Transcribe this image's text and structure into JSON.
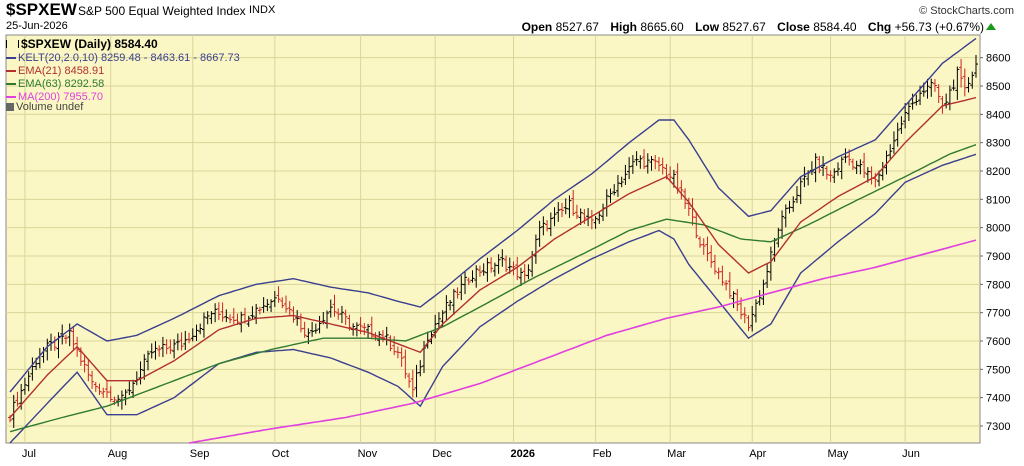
{
  "header": {
    "symbol": "$SPXEW",
    "name": "S&P 500 Equal Weighted Index",
    "exchange": "INDX",
    "brand": "© StockCharts.com",
    "date": "25-Jun-2026",
    "open_label": "Open",
    "open": "8527.67",
    "high_label": "High",
    "high": "8665.60",
    "low_label": "Low",
    "low": "8527.67",
    "close_label": "Close",
    "close": "8584.40",
    "chg_label": "Chg",
    "chg": "+56.73 (+0.67%)"
  },
  "legend": {
    "title": "$SPXEW (Daily) 8584.40",
    "kelt": "KELT(20,2.0,10) 8259.48 - 8463.61 - 8667.73",
    "ema21": "EMA(21) 8458.91",
    "ema63": "EMA(63) 8292.58",
    "ma200": "MA(200) 7955.70",
    "volume": "Volume undef"
  },
  "colors": {
    "background": "#fbf7c4",
    "grid": "#d9d59a",
    "price": "#000000",
    "price_down": "#cc2222",
    "kelt": "#3a3f8f",
    "ema21": "#b23030",
    "ema63": "#2f7a2f",
    "ma200": "#e040e0",
    "up": "#1a9a1a"
  },
  "chart_data": {
    "type": "line",
    "title": "$SPXEW (Daily) 8584.40",
    "ylim": [
      7240,
      8680
    ],
    "yticks": [
      7300,
      7400,
      7500,
      7600,
      7700,
      7800,
      7900,
      8000,
      8100,
      8200,
      8300,
      8400,
      8500,
      8600
    ],
    "x_month_labels": [
      {
        "label": "Jul",
        "i": 4
      },
      {
        "label": "Aug",
        "i": 27
      },
      {
        "label": "Sep",
        "i": 49
      },
      {
        "label": "Oct",
        "i": 71
      },
      {
        "label": "Nov",
        "i": 94
      },
      {
        "label": "Dec",
        "i": 114
      },
      {
        "label": "2026",
        "i": 135,
        "bold": true
      },
      {
        "label": "Feb",
        "i": 157
      },
      {
        "label": "Mar",
        "i": 177
      },
      {
        "label": "Apr",
        "i": 199
      },
      {
        "label": "May",
        "i": 220
      },
      {
        "label": "Jun",
        "i": 240
      }
    ],
    "n_bars": 260,
    "close_keys": [
      [
        0,
        7340
      ],
      [
        8,
        7560
      ],
      [
        16,
        7620
      ],
      [
        22,
        7450
      ],
      [
        30,
        7390
      ],
      [
        38,
        7560
      ],
      [
        46,
        7590
      ],
      [
        54,
        7700
      ],
      [
        62,
        7680
      ],
      [
        72,
        7760
      ],
      [
        80,
        7620
      ],
      [
        86,
        7720
      ],
      [
        92,
        7650
      ],
      [
        100,
        7620
      ],
      [
        104,
        7560
      ],
      [
        108,
        7420
      ],
      [
        112,
        7620
      ],
      [
        118,
        7740
      ],
      [
        124,
        7840
      ],
      [
        132,
        7880
      ],
      [
        138,
        7820
      ],
      [
        142,
        7990
      ],
      [
        150,
        8080
      ],
      [
        156,
        8010
      ],
      [
        162,
        8140
      ],
      [
        168,
        8240
      ],
      [
        174,
        8220
      ],
      [
        178,
        8170
      ],
      [
        182,
        8060
      ],
      [
        186,
        7920
      ],
      [
        192,
        7800
      ],
      [
        196,
        7700
      ],
      [
        198,
        7660
      ],
      [
        202,
        7800
      ],
      [
        206,
        8000
      ],
      [
        212,
        8150
      ],
      [
        216,
        8230
      ],
      [
        220,
        8180
      ],
      [
        224,
        8250
      ],
      [
        228,
        8210
      ],
      [
        232,
        8160
      ],
      [
        236,
        8280
      ],
      [
        240,
        8400
      ],
      [
        244,
        8480
      ],
      [
        248,
        8500
      ],
      [
        250,
        8420
      ],
      [
        254,
        8540
      ],
      [
        256,
        8480
      ],
      [
        259,
        8584
      ]
    ],
    "ema21_keys": [
      [
        0,
        7330
      ],
      [
        10,
        7480
      ],
      [
        18,
        7580
      ],
      [
        26,
        7460
      ],
      [
        34,
        7460
      ],
      [
        44,
        7530
      ],
      [
        56,
        7640
      ],
      [
        66,
        7680
      ],
      [
        76,
        7690
      ],
      [
        86,
        7660
      ],
      [
        96,
        7630
      ],
      [
        104,
        7590
      ],
      [
        110,
        7560
      ],
      [
        116,
        7660
      ],
      [
        126,
        7780
      ],
      [
        136,
        7860
      ],
      [
        146,
        7960
      ],
      [
        156,
        8040
      ],
      [
        166,
        8120
      ],
      [
        176,
        8180
      ],
      [
        182,
        8090
      ],
      [
        190,
        7940
      ],
      [
        198,
        7840
      ],
      [
        204,
        7880
      ],
      [
        212,
        8020
      ],
      [
        222,
        8110
      ],
      [
        232,
        8180
      ],
      [
        240,
        8300
      ],
      [
        250,
        8430
      ],
      [
        259,
        8459
      ]
    ],
    "ema63_keys": [
      [
        0,
        7280
      ],
      [
        14,
        7330
      ],
      [
        26,
        7370
      ],
      [
        40,
        7440
      ],
      [
        56,
        7520
      ],
      [
        70,
        7570
      ],
      [
        84,
        7610
      ],
      [
        96,
        7610
      ],
      [
        106,
        7600
      ],
      [
        116,
        7650
      ],
      [
        126,
        7720
      ],
      [
        140,
        7820
      ],
      [
        154,
        7910
      ],
      [
        166,
        7990
      ],
      [
        176,
        8030
      ],
      [
        186,
        8010
      ],
      [
        196,
        7960
      ],
      [
        204,
        7950
      ],
      [
        214,
        8010
      ],
      [
        226,
        8090
      ],
      [
        240,
        8180
      ],
      [
        252,
        8260
      ],
      [
        259,
        8293
      ]
    ],
    "ma200_keys": [
      [
        48,
        7240
      ],
      [
        70,
        7290
      ],
      [
        90,
        7330
      ],
      [
        108,
        7380
      ],
      [
        126,
        7450
      ],
      [
        144,
        7540
      ],
      [
        160,
        7620
      ],
      [
        176,
        7680
      ],
      [
        190,
        7720
      ],
      [
        204,
        7770
      ],
      [
        218,
        7820
      ],
      [
        232,
        7860
      ],
      [
        246,
        7910
      ],
      [
        259,
        7956
      ]
    ],
    "kelt_upper_keys": [
      [
        0,
        7420
      ],
      [
        10,
        7580
      ],
      [
        18,
        7660
      ],
      [
        26,
        7600
      ],
      [
        34,
        7620
      ],
      [
        44,
        7680
      ],
      [
        56,
        7760
      ],
      [
        66,
        7800
      ],
      [
        76,
        7820
      ],
      [
        86,
        7790
      ],
      [
        96,
        7770
      ],
      [
        104,
        7740
      ],
      [
        110,
        7720
      ],
      [
        116,
        7780
      ],
      [
        126,
        7890
      ],
      [
        136,
        7990
      ],
      [
        146,
        8100
      ],
      [
        156,
        8190
      ],
      [
        166,
        8300
      ],
      [
        174,
        8380
      ],
      [
        178,
        8380
      ],
      [
        182,
        8310
      ],
      [
        190,
        8140
      ],
      [
        198,
        8040
      ],
      [
        204,
        8060
      ],
      [
        212,
        8180
      ],
      [
        222,
        8250
      ],
      [
        232,
        8310
      ],
      [
        240,
        8430
      ],
      [
        250,
        8580
      ],
      [
        259,
        8668
      ]
    ],
    "kelt_lower_keys": [
      [
        0,
        7240
      ],
      [
        10,
        7380
      ],
      [
        18,
        7490
      ],
      [
        26,
        7340
      ],
      [
        34,
        7340
      ],
      [
        44,
        7400
      ],
      [
        56,
        7520
      ],
      [
        66,
        7560
      ],
      [
        76,
        7570
      ],
      [
        86,
        7540
      ],
      [
        96,
        7490
      ],
      [
        104,
        7440
      ],
      [
        110,
        7370
      ],
      [
        116,
        7510
      ],
      [
        126,
        7650
      ],
      [
        136,
        7740
      ],
      [
        146,
        7820
      ],
      [
        156,
        7890
      ],
      [
        166,
        7950
      ],
      [
        174,
        7990
      ],
      [
        178,
        7960
      ],
      [
        182,
        7870
      ],
      [
        190,
        7740
      ],
      [
        198,
        7610
      ],
      [
        204,
        7660
      ],
      [
        212,
        7840
      ],
      [
        222,
        7950
      ],
      [
        232,
        8050
      ],
      [
        240,
        8160
      ],
      [
        250,
        8220
      ],
      [
        259,
        8259
      ]
    ]
  }
}
